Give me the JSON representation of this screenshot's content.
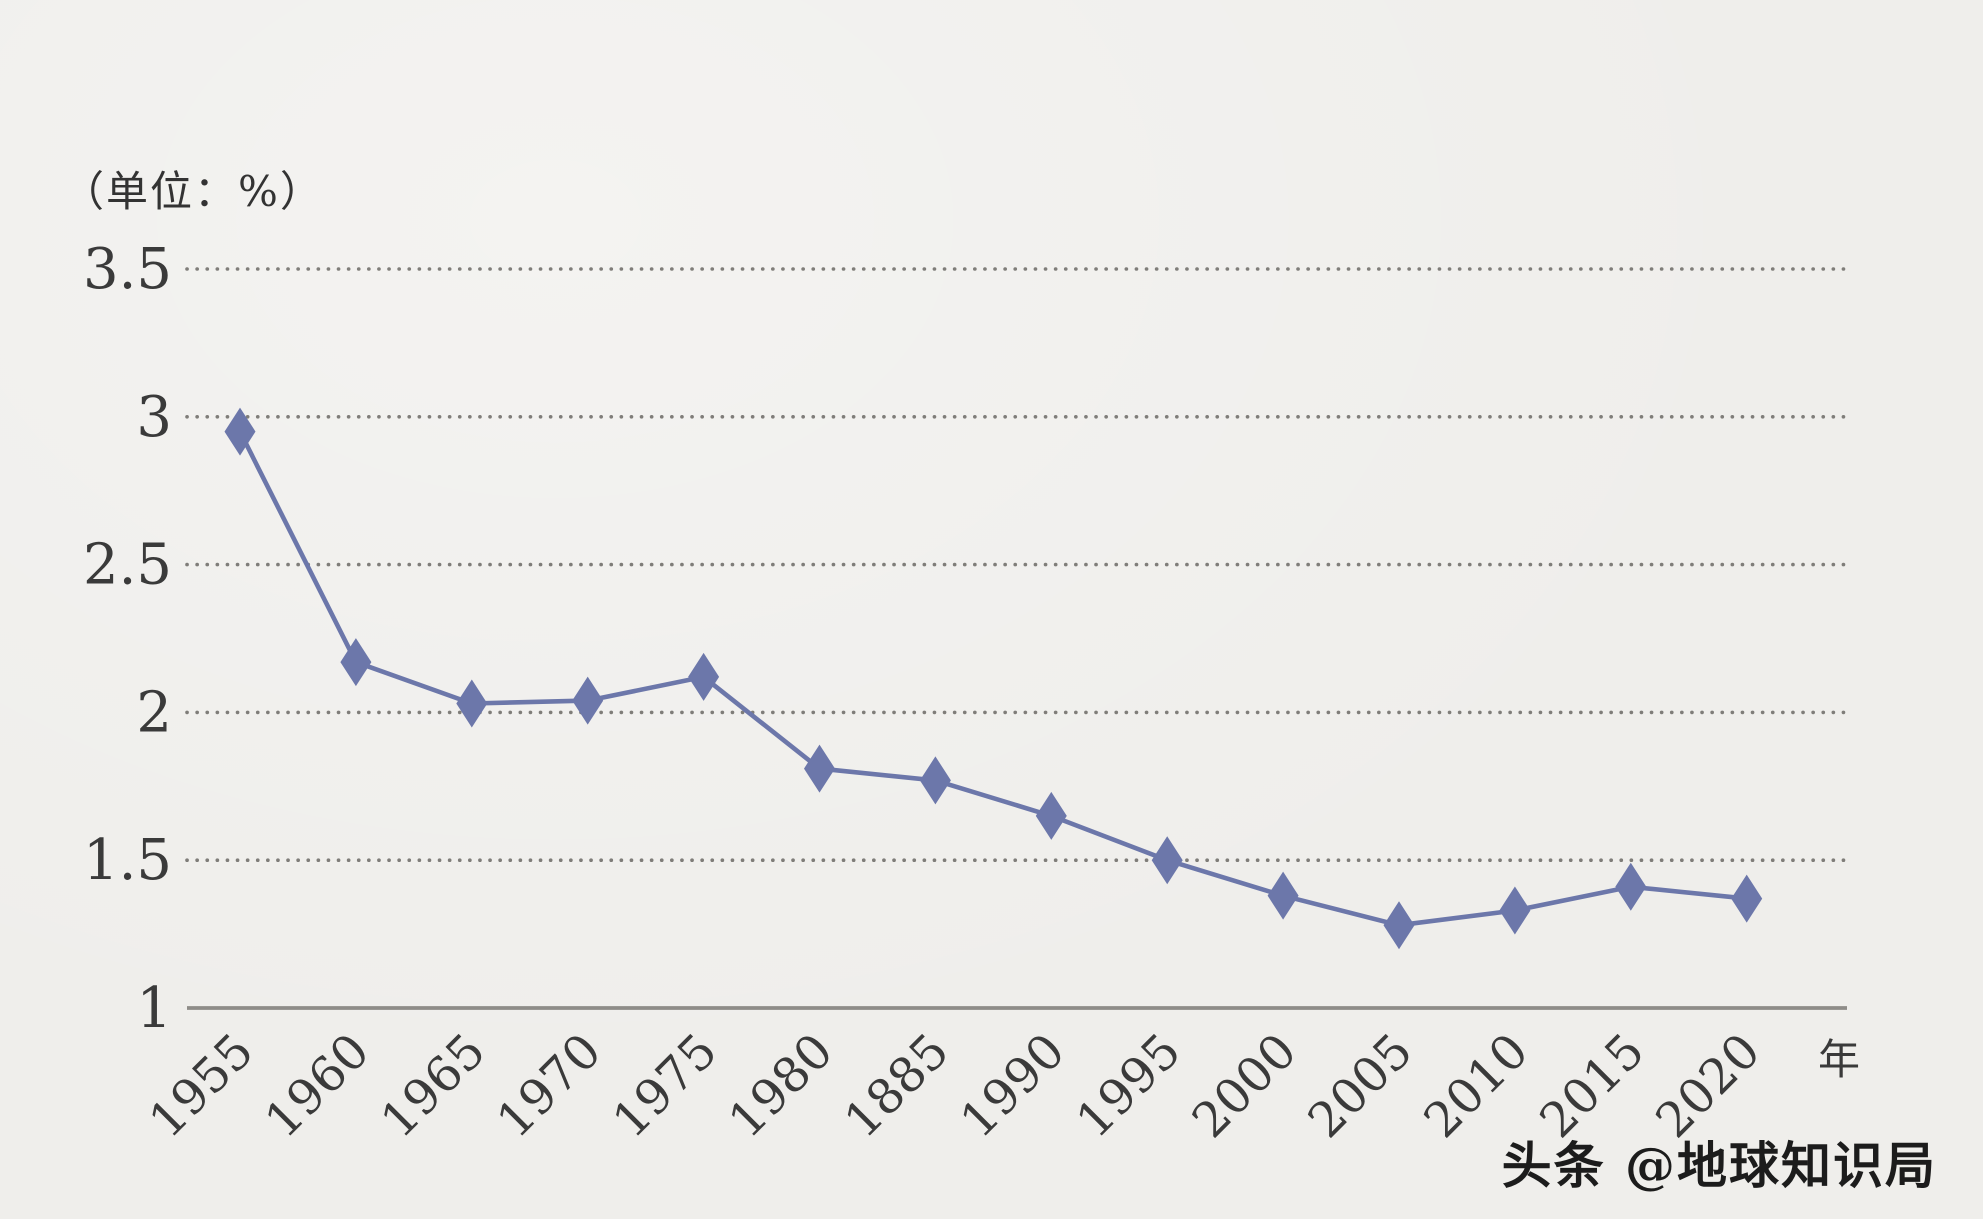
{
  "page": {
    "unit_label": "（单位：%）",
    "x_axis_suffix": "年",
    "watermark": "头条 @地球知识局",
    "background": "#f0efec"
  },
  "chart_data": {
    "type": "line",
    "title": "",
    "unit": "%",
    "categories": [
      "1955",
      "1960",
      "1965",
      "1970",
      "1975",
      "1980",
      "1885",
      "1990",
      "1995",
      "2000",
      "2005",
      "2010",
      "2015",
      "2020"
    ],
    "values": [
      2.95,
      2.17,
      2.03,
      2.04,
      2.12,
      1.81,
      1.77,
      1.65,
      1.5,
      1.38,
      1.28,
      1.33,
      1.41,
      1.37
    ],
    "xlabel": "年",
    "ylabel": "（单位：%）",
    "ylim": [
      1,
      3.5
    ],
    "yticks": [
      3.5,
      3,
      2.5,
      2,
      1.5,
      1
    ],
    "line_color": "#6c77aa",
    "axis_color": "#8e8c88",
    "grid_color": "#7f7d79",
    "text_color": "#3a3a3a",
    "marker": "diamond",
    "grid": "dotted-horizontal",
    "legend": "none"
  }
}
